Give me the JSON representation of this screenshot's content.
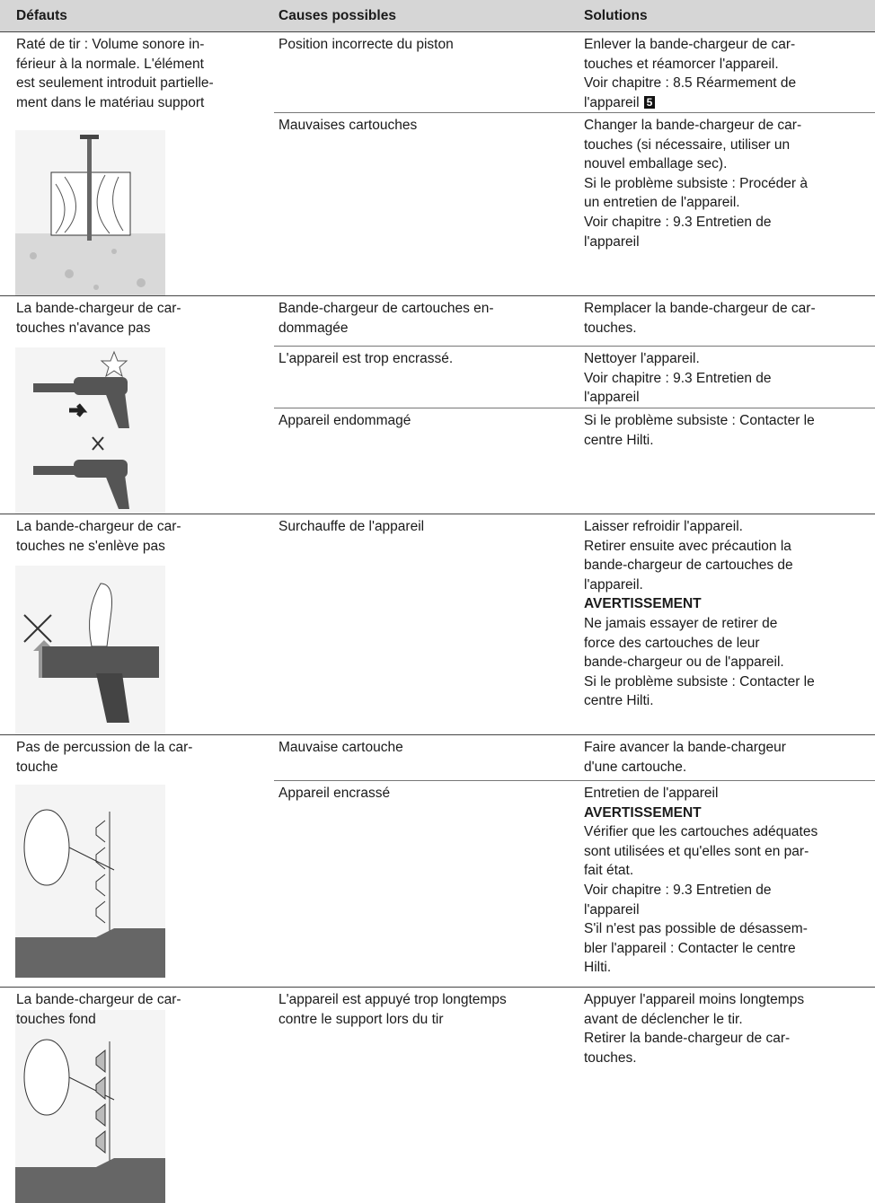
{
  "table": {
    "header": [
      "Défauts",
      "Causes possibles",
      "Solutions"
    ],
    "rows": [
      {
        "defect": [
          "Raté de tir : Volume sonore in-",
          "férieur à la normale. L'élément",
          "est seulement introduit partielle-",
          "ment dans le matériau support"
        ],
        "causes": [
          {
            "cause": [
              "Position incorrecte du piston"
            ],
            "solution": [
              {
                "lines": [
                  "Enlever la bande-chargeur de car-",
                  "touches et réamorcer l'appareil.",
                  "Voir chapitre : 8.5 Réarmement de",
                  "l'appareil"
                ],
                "badge": "5"
              }
            ]
          },
          {
            "cause": [
              "Mauvaises cartouches"
            ],
            "solution": [
              {
                "lines": [
                  "Changer la bande-chargeur de car-",
                  "touches (si nécessaire, utiliser un",
                  "nouvel emballage sec).",
                  "Si le problème subsiste : Procéder à",
                  "un entretien de l'appareil.",
                  "Voir chapitre : 9.3 Entretien de",
                  "l'appareil"
                ]
              }
            ]
          }
        ]
      },
      {
        "defect": [
          "La bande-chargeur de car-",
          "touches n'avance pas"
        ],
        "causes": [
          {
            "cause": [
              "Bande-chargeur de cartouches en-",
              "dommagée"
            ],
            "solution": [
              {
                "lines": [
                  "Remplacer la bande-chargeur de car-",
                  "touches."
                ]
              }
            ]
          },
          {
            "cause": [
              "L'appareil est trop encrassé."
            ],
            "solution": [
              {
                "lines": [
                  "Nettoyer l'appareil.",
                  "Voir chapitre : 9.3 Entretien de",
                  "l'appareil"
                ]
              }
            ]
          },
          {
            "cause": [
              "Appareil endommagé"
            ],
            "solution": [
              {
                "lines": [
                  "Si le problème subsiste : Contacter le",
                  "centre Hilti."
                ]
              }
            ]
          }
        ]
      },
      {
        "defect": [
          "La bande-chargeur de car-",
          "touches ne s'enlève pas"
        ],
        "causes": [
          {
            "cause": [
              "Surchauffe de l'appareil"
            ],
            "solution": [
              {
                "lines": [
                  "Laisser refroidir l'appareil.",
                  "Retirer ensuite avec précaution la",
                  "bande-chargeur de cartouches de",
                  "l'appareil."
                ]
              },
              {
                "warning": "AVERTISSEMENT"
              },
              {
                "lines": [
                  "Ne jamais essayer de retirer de",
                  "force des cartouches de leur",
                  "bande-chargeur ou de l'appareil.",
                  "Si le problème subsiste : Contacter le",
                  "centre Hilti."
                ]
              }
            ]
          }
        ]
      },
      {
        "defect": [
          "Pas de percussion de la car-",
          "touche"
        ],
        "causes": [
          {
            "cause": [
              "Mauvaise cartouche"
            ],
            "solution": [
              {
                "lines": [
                  "Faire avancer la bande-chargeur",
                  "d'une cartouche."
                ]
              }
            ]
          },
          {
            "cause": [
              "Appareil encrassé"
            ],
            "solution": [
              {
                "lines": [
                  "Entretien de l'appareil"
                ]
              },
              {
                "warning": "AVERTISSEMENT"
              },
              {
                "lines": [
                  "Vérifier que les cartouches adéquates",
                  "sont utilisées et qu'elles sont en par-",
                  "fait état.",
                  "Voir chapitre : 9.3 Entretien de",
                  "l'appareil",
                  "S'il n'est pas possible de désassem-",
                  "bler l'appareil : Contacter le centre",
                  "Hilti."
                ]
              }
            ]
          }
        ]
      },
      {
        "defect": [
          "La bande-chargeur de car-",
          "touches fond"
        ],
        "causes": [
          {
            "cause": [
              "L'appareil est appuyé trop longtemps",
              "contre le support lors du tir"
            ],
            "solution": [
              {
                "lines": [
                  "Appuyer l'appareil moins longtemps",
                  "avant de déclencher le tir.",
                  "Retirer la bande-chargeur de car-",
                  "touches."
                ]
              }
            ]
          }
        ]
      }
    ]
  }
}
